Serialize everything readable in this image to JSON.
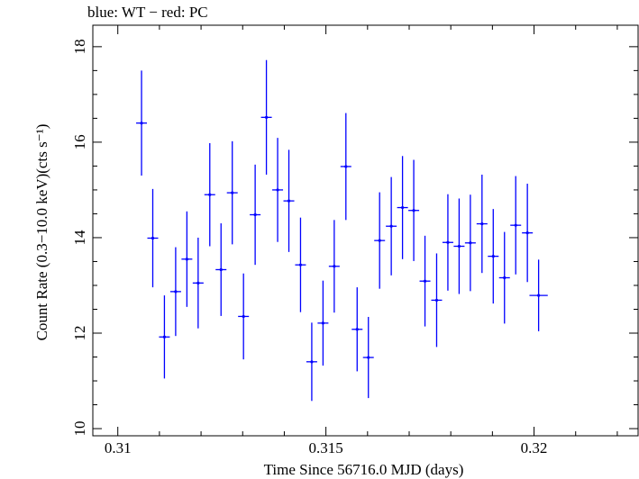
{
  "chart_data": {
    "type": "scatter",
    "title": "blue: WT − red: PC",
    "xlabel": "Time Since 56716.0 MJD (days)",
    "ylabel": "Count Rate (0.3−10.0 keV)(cts s⁻¹)",
    "xlim": [
      0.3094,
      0.3225
    ],
    "ylim": [
      9.85,
      18.45
    ],
    "xticks": [
      0.31,
      0.315,
      0.32
    ],
    "xtick_labels": [
      "0.31",
      "0.315",
      "0.32"
    ],
    "yticks": [
      10,
      12,
      14,
      16,
      18
    ],
    "ytick_labels": [
      "10",
      "12",
      "14",
      "16",
      "18"
    ],
    "grid": false,
    "series": [
      {
        "name": "WT",
        "color": "#0000ff",
        "points": [
          {
            "x": 0.31057,
            "y": 16.4,
            "xerr": 0.00013,
            "yerr": 1.1
          },
          {
            "x": 0.31084,
            "y": 13.99,
            "xerr": 0.00013,
            "yerr": 1.03
          },
          {
            "x": 0.31112,
            "y": 11.92,
            "xerr": 0.00013,
            "yerr": 0.87
          },
          {
            "x": 0.31139,
            "y": 12.87,
            "xerr": 0.00013,
            "yerr": 0.93
          },
          {
            "x": 0.31166,
            "y": 13.55,
            "xerr": 0.00013,
            "yerr": 1.0
          },
          {
            "x": 0.31193,
            "y": 13.05,
            "xerr": 0.00013,
            "yerr": 0.95
          },
          {
            "x": 0.31221,
            "y": 14.9,
            "xerr": 0.00013,
            "yerr": 1.08
          },
          {
            "x": 0.31248,
            "y": 13.33,
            "xerr": 0.00013,
            "yerr": 0.97
          },
          {
            "x": 0.31275,
            "y": 14.94,
            "xerr": 0.00013,
            "yerr": 1.08
          },
          {
            "x": 0.31302,
            "y": 12.35,
            "xerr": 0.00013,
            "yerr": 0.9
          },
          {
            "x": 0.3133,
            "y": 14.48,
            "xerr": 0.00013,
            "yerr": 1.05
          },
          {
            "x": 0.31357,
            "y": 16.52,
            "xerr": 0.00013,
            "yerr": 1.2
          },
          {
            "x": 0.31384,
            "y": 15.0,
            "xerr": 0.00013,
            "yerr": 1.09
          },
          {
            "x": 0.31411,
            "y": 14.77,
            "xerr": 0.00013,
            "yerr": 1.07
          },
          {
            "x": 0.31439,
            "y": 13.43,
            "xerr": 0.00013,
            "yerr": 0.99
          },
          {
            "x": 0.31466,
            "y": 11.4,
            "xerr": 0.00013,
            "yerr": 0.82
          },
          {
            "x": 0.31493,
            "y": 12.21,
            "xerr": 0.00013,
            "yerr": 0.89
          },
          {
            "x": 0.3152,
            "y": 13.4,
            "xerr": 0.00013,
            "yerr": 0.97
          },
          {
            "x": 0.31548,
            "y": 15.49,
            "xerr": 0.00013,
            "yerr": 1.12
          },
          {
            "x": 0.31575,
            "y": 12.08,
            "xerr": 0.00013,
            "yerr": 0.88
          },
          {
            "x": 0.31602,
            "y": 11.49,
            "xerr": 0.00013,
            "yerr": 0.85
          },
          {
            "x": 0.31629,
            "y": 13.94,
            "xerr": 0.00013,
            "yerr": 1.01
          },
          {
            "x": 0.31657,
            "y": 14.24,
            "xerr": 0.00013,
            "yerr": 1.03
          },
          {
            "x": 0.31684,
            "y": 14.63,
            "xerr": 0.00013,
            "yerr": 1.08
          },
          {
            "x": 0.31711,
            "y": 14.57,
            "xerr": 0.00013,
            "yerr": 1.06
          },
          {
            "x": 0.31738,
            "y": 13.09,
            "xerr": 0.00013,
            "yerr": 0.95
          },
          {
            "x": 0.31766,
            "y": 12.69,
            "xerr": 0.00013,
            "yerr": 0.98
          },
          {
            "x": 0.31793,
            "y": 13.9,
            "xerr": 0.00013,
            "yerr": 1.01
          },
          {
            "x": 0.3182,
            "y": 13.82,
            "xerr": 0.00013,
            "yerr": 1.0
          },
          {
            "x": 0.31847,
            "y": 13.89,
            "xerr": 0.00013,
            "yerr": 1.01
          },
          {
            "x": 0.31875,
            "y": 14.29,
            "xerr": 0.00013,
            "yerr": 1.03
          },
          {
            "x": 0.31902,
            "y": 13.61,
            "xerr": 0.00013,
            "yerr": 0.99
          },
          {
            "x": 0.31929,
            "y": 13.16,
            "xerr": 0.00013,
            "yerr": 0.96
          },
          {
            "x": 0.31956,
            "y": 14.26,
            "xerr": 0.00013,
            "yerr": 1.03
          },
          {
            "x": 0.31984,
            "y": 14.1,
            "xerr": 0.00013,
            "yerr": 1.03
          },
          {
            "x": 0.32011,
            "y": 12.79,
            "xerr": 0.00022,
            "yerr": 0.75
          }
        ]
      }
    ]
  }
}
